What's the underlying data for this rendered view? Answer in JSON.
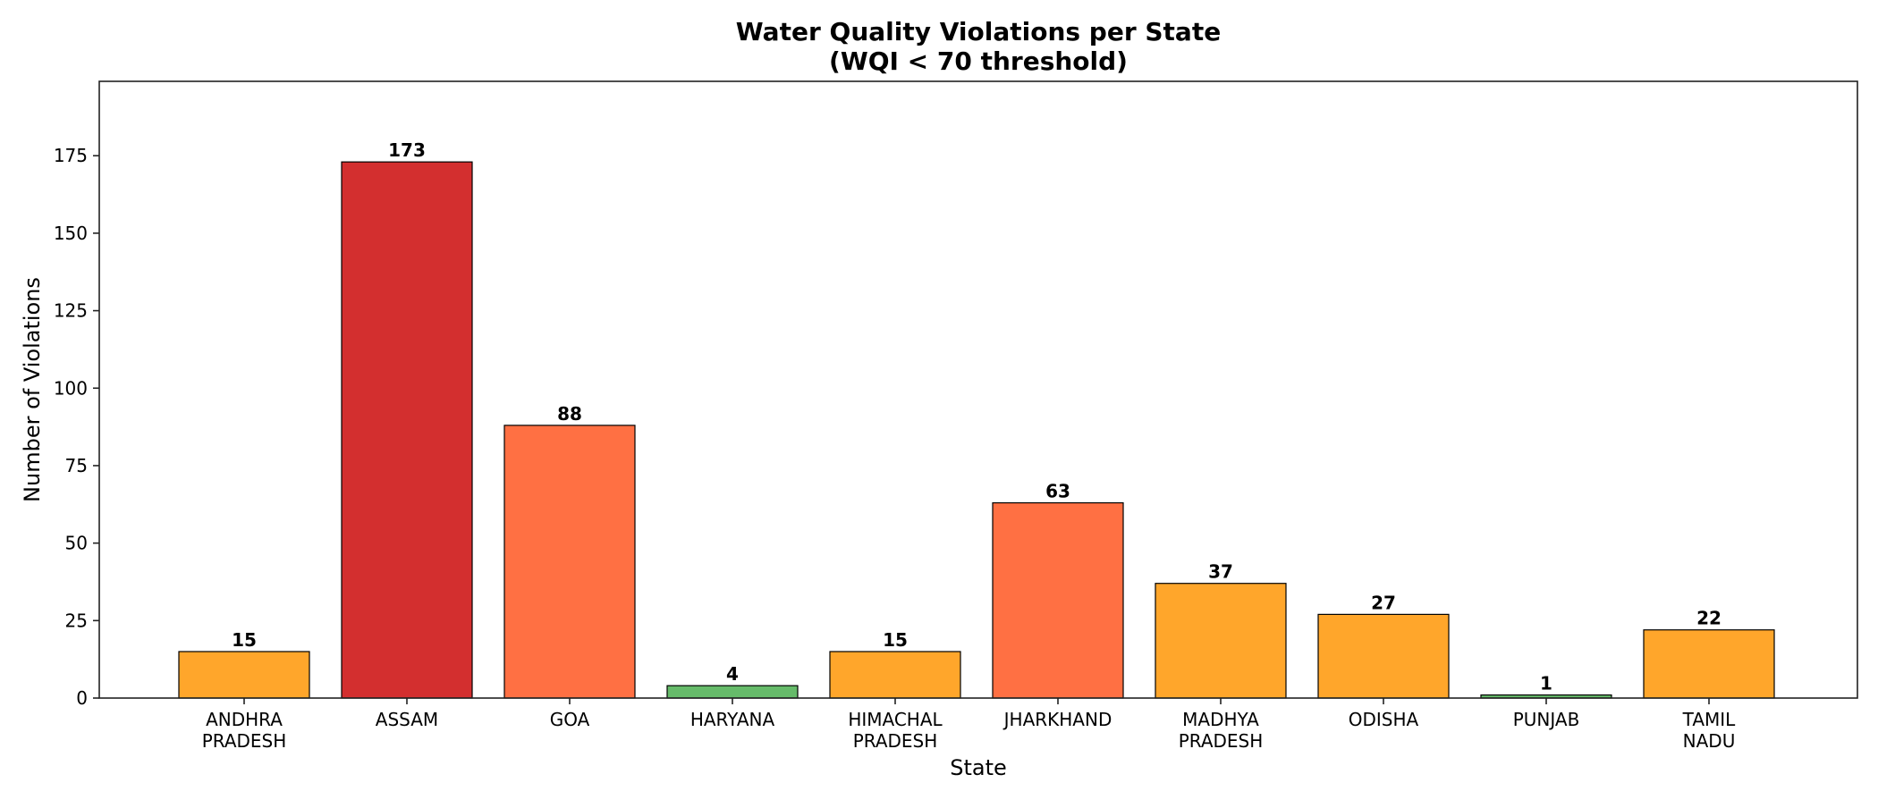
{
  "chart_data": {
    "type": "bar",
    "title": "Water Quality Violations per State\n(WQI < 70 threshold)",
    "title_lines": [
      "Water Quality Violations per State",
      "(WQI < 70 threshold)"
    ],
    "xlabel": "State",
    "ylabel": "Number of Violations",
    "categories": [
      "ANDHRA\nPRADESH",
      "ASSAM",
      "GOA",
      "HARYANA",
      "HIMACHAL\nPRADESH",
      "JHARKHAND",
      "MADHYA\nPRADESH",
      "ODISHA",
      "PUNJAB",
      "TAMIL\nNADU"
    ],
    "values": [
      15,
      173,
      88,
      4,
      15,
      63,
      37,
      27,
      1,
      22
    ],
    "colors": [
      "#FFA62B",
      "#D32F2F",
      "#FF7043",
      "#66BB6A",
      "#FFA62B",
      "#FF7043",
      "#FFA62B",
      "#FFA62B",
      "#66BB6A",
      "#FFA62B"
    ],
    "data_labels": [
      "15",
      "173",
      "88",
      "4",
      "15",
      "63",
      "37",
      "27",
      "1",
      "22"
    ],
    "yticks": [
      0,
      25,
      50,
      75,
      100,
      125,
      150,
      175
    ],
    "ylim": [
      0,
      199
    ],
    "grid": false,
    "legend": "none"
  }
}
